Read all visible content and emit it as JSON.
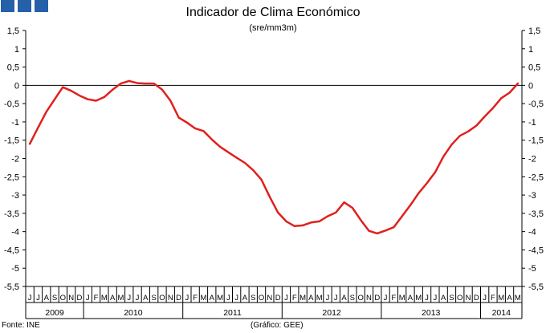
{
  "header": {
    "title": "Indicador de Clima Económico",
    "subtitle": "(sre/mm3m)"
  },
  "footer": {
    "source": "Fonte: INE",
    "credit": "(Gráfico: GEE)"
  },
  "colors": {
    "line": "#e0201c",
    "logo": "#2560a8",
    "axis": "#000000",
    "grid": "#000000"
  },
  "chart_data": {
    "type": "line",
    "title": "Indicador de Clima Económico",
    "subtitle": "(sre/mm3m)",
    "ylim": [
      -5.5,
      1.5
    ],
    "yticks": [
      "1,5",
      "1",
      "0,5",
      "0",
      "-0,5",
      "-1",
      "-1,5",
      "-2",
      "-2,5",
      "-3",
      "-3,5",
      "-4",
      "-4,5",
      "-5",
      "-5,5"
    ],
    "month_labels": [
      "J",
      "J",
      "A",
      "S",
      "O",
      "N",
      "D",
      "J",
      "F",
      "M",
      "A",
      "M",
      "J",
      "J",
      "A",
      "S",
      "O",
      "N",
      "D",
      "J",
      "F",
      "M",
      "A",
      "M",
      "J",
      "J",
      "A",
      "S",
      "O",
      "N",
      "D",
      "J",
      "F",
      "M",
      "A",
      "M",
      "J",
      "J",
      "A",
      "S",
      "O",
      "N",
      "D",
      "J",
      "F",
      "M",
      "A",
      "M",
      "J",
      "J",
      "A",
      "S",
      "O",
      "N",
      "D",
      "J",
      "F",
      "M",
      "A",
      "M"
    ],
    "years": [
      {
        "label": "2009",
        "count": 7
      },
      {
        "label": "2010",
        "count": 12
      },
      {
        "label": "2011",
        "count": 12
      },
      {
        "label": "2012",
        "count": 12
      },
      {
        "label": "2013",
        "count": 12
      },
      {
        "label": "2014",
        "count": 5
      }
    ],
    "series": [
      {
        "values": [
          -1.6,
          -1.15,
          -0.72,
          -0.38,
          -0.05,
          -0.15,
          -0.28,
          -0.38,
          -0.42,
          -0.32,
          -0.12,
          0.05,
          0.12,
          0.06,
          0.05,
          0.05,
          -0.12,
          -0.42,
          -0.88,
          -1.02,
          -1.18,
          -1.25,
          -1.48,
          -1.68,
          -1.83,
          -1.98,
          -2.12,
          -2.32,
          -2.58,
          -3.05,
          -3.48,
          -3.72,
          -3.85,
          -3.83,
          -3.75,
          -3.72,
          -3.58,
          -3.48,
          -3.2,
          -3.35,
          -3.68,
          -3.98,
          -4.05,
          -3.97,
          -3.88,
          -3.58,
          -3.28,
          -2.95,
          -2.68,
          -2.38,
          -1.95,
          -1.62,
          -1.38,
          -1.26,
          -1.1,
          -0.85,
          -0.62,
          -0.35,
          -0.2,
          0.05
        ]
      }
    ],
    "grid": false,
    "legend": "none"
  }
}
